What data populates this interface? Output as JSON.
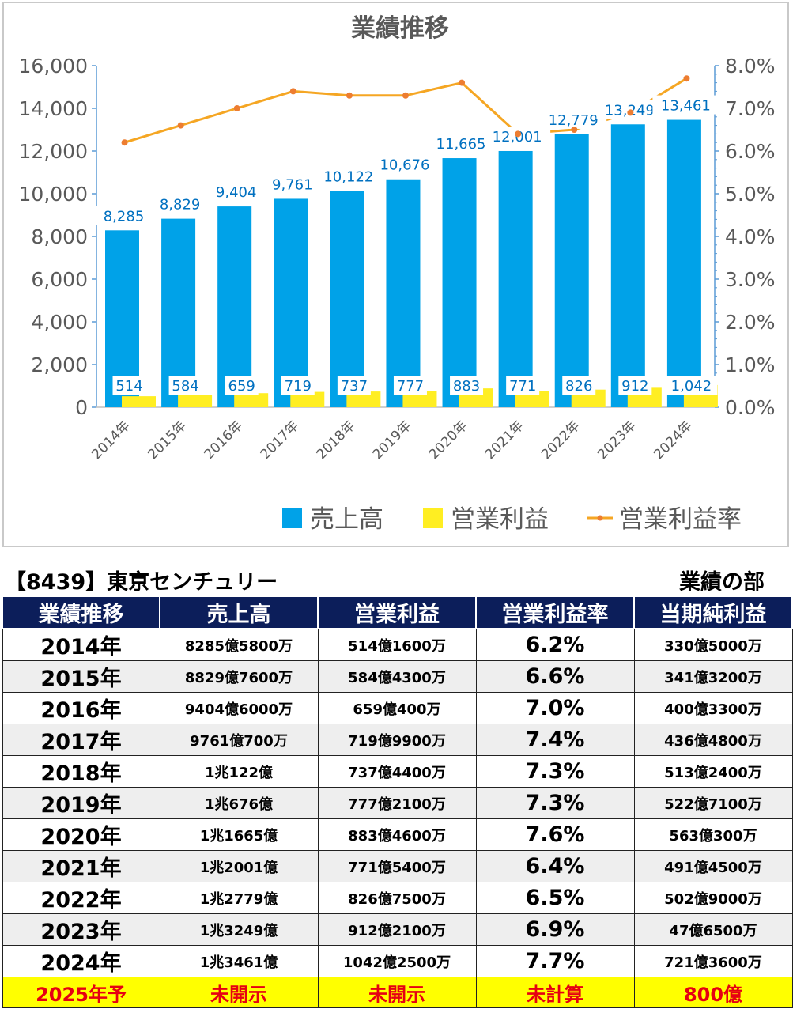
{
  "chart_data": {
    "type": "bar+line",
    "title": "業績推移",
    "categories": [
      "2014年",
      "2015年",
      "2016年",
      "2017年",
      "2018年",
      "2019年",
      "2020年",
      "2021年",
      "2022年",
      "2023年",
      "2024年"
    ],
    "series": [
      {
        "name": "売上高",
        "type": "bar",
        "axis": "left",
        "color": "#00a2e8",
        "values": [
          8285,
          8829,
          9404,
          9761,
          10122,
          10676,
          11665,
          12001,
          12779,
          13249,
          13461
        ],
        "labels": [
          "8,285",
          "8,829",
          "9,404",
          "9,761",
          "10,122",
          "10,676",
          "11,665",
          "12,001",
          "12,779",
          "13,249",
          "13,461"
        ]
      },
      {
        "name": "営業利益",
        "type": "bar",
        "axis": "left",
        "color": "#ffee22",
        "values": [
          514,
          584,
          659,
          719,
          737,
          777,
          883,
          771,
          826,
          912,
          1042
        ],
        "labels": [
          "514",
          "584",
          "659",
          "719",
          "737",
          "777",
          "883",
          "771",
          "826",
          "912",
          "1,042"
        ]
      },
      {
        "name": "営業利益率",
        "type": "line",
        "axis": "right",
        "color": "#f5a623",
        "values": [
          6.2,
          6.6,
          7.0,
          7.4,
          7.3,
          7.3,
          7.6,
          6.4,
          6.5,
          6.9,
          7.7
        ]
      }
    ],
    "ylim": [
      0,
      16000
    ],
    "y2lim": [
      0,
      8
    ],
    "yticks": [
      "0",
      "2,000",
      "4,000",
      "6,000",
      "8,000",
      "10,000",
      "12,000",
      "14,000",
      "16,000"
    ],
    "y2ticks": [
      "0.0%",
      "1.0%",
      "2.0%",
      "3.0%",
      "4.0%",
      "5.0%",
      "6.0%",
      "7.0%",
      "8.0%"
    ],
    "legend": "bottom",
    "grid": false
  },
  "info": {
    "company": "【8439】東京センチュリー",
    "section": "業績の部"
  },
  "table": {
    "headers": [
      "業績推移",
      "売上高",
      "営業利益",
      "営業利益率",
      "当期純利益"
    ],
    "rows": [
      [
        "2014年",
        "8285億5800万",
        "514億1600万",
        "6.2%",
        "330億5000万"
      ],
      [
        "2015年",
        "8829億7600万",
        "584億4300万",
        "6.6%",
        "341億3200万"
      ],
      [
        "2016年",
        "9404億6000万",
        "659億400万",
        "7.0%",
        "400億3300万"
      ],
      [
        "2017年",
        "9761億700万",
        "719億9900万",
        "7.4%",
        "436億4800万"
      ],
      [
        "2018年",
        "1兆122億",
        "737億4400万",
        "7.3%",
        "513億2400万"
      ],
      [
        "2019年",
        "1兆676億",
        "777億2100万",
        "7.3%",
        "522億7100万"
      ],
      [
        "2020年",
        "1兆1665億",
        "883億4600万",
        "7.6%",
        "563億300万"
      ],
      [
        "2021年",
        "1兆2001億",
        "771億5400万",
        "6.4%",
        "491億4500万"
      ],
      [
        "2022年",
        "1兆2779億",
        "826億7500万",
        "6.5%",
        "502億9000万"
      ],
      [
        "2023年",
        "1兆3249億",
        "912億2100万",
        "6.9%",
        "47億6500万"
      ],
      [
        "2024年",
        "1兆3461億",
        "1042億2500万",
        "7.7%",
        "721億3600万"
      ]
    ],
    "forecast": [
      "2025年予",
      "未開示",
      "未開示",
      "未計算",
      "800億"
    ]
  }
}
